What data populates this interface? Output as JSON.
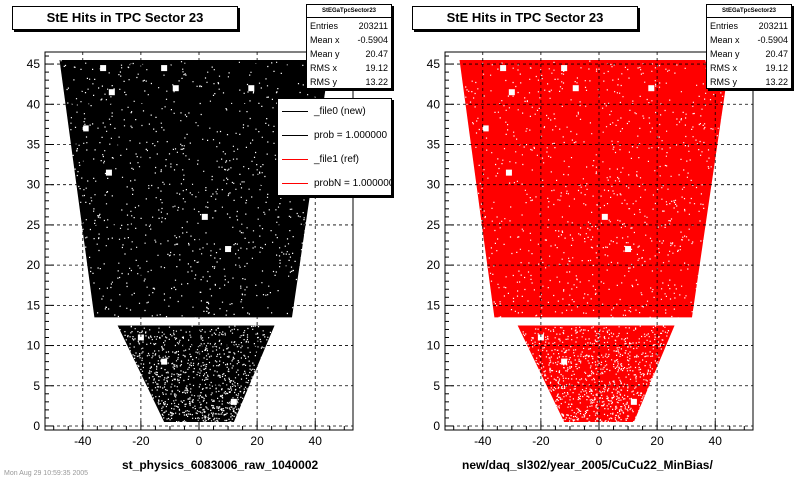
{
  "chart_data": [
    {
      "type": "scatter",
      "title": "StE Hits in TPC Sector 23",
      "xlabel": "st_physics_6083006_raw_1040002",
      "ylabel": "",
      "xlim": [
        -53,
        53
      ],
      "ylim": [
        -0.5,
        46.5
      ],
      "xticks": [
        -40,
        -20,
        0,
        20,
        40
      ],
      "yticks": [
        0,
        5,
        10,
        15,
        20,
        25,
        30,
        35,
        40,
        45
      ],
      "grid": true,
      "color": "#000000",
      "region": {
        "outer_top": {
          "y": [
            13.5,
            45.5
          ],
          "x_min_at_bottom": -36,
          "x_min_at_top": -48,
          "x_max_at_bottom": 32,
          "x_max_at_top": 45
        },
        "inner_bottom": {
          "y": [
            0.5,
            12.5
          ],
          "x_min_at_bottom": -12,
          "x_min_at_top": -28,
          "x_max_at_bottom": 12,
          "x_max_at_top": 26
        }
      },
      "stats": {
        "name": "StEGaTpcSector23",
        "rows": [
          {
            "label": "Entries",
            "value": "203211"
          },
          {
            "label": "Mean x",
            "value": "-0.5904"
          },
          {
            "label": "Mean y",
            "value": "20.47"
          },
          {
            "label": "RMS x",
            "value": "19.12"
          },
          {
            "label": "RMS y",
            "value": "13.22"
          }
        ]
      },
      "legend": {
        "placement": "top-right",
        "entries": [
          {
            "label": "_file0 (new)",
            "color": "#000000"
          },
          {
            "label": "prob = 1.000000",
            "color": "#000000"
          },
          {
            "label": "_file1 (ref)",
            "color": "#ff0000"
          },
          {
            "label": "probN = 1.000000",
            "color": "#ff0000"
          }
        ]
      }
    },
    {
      "type": "scatter",
      "title": "StE Hits in TPC Sector 23",
      "xlabel": "new/daq_sl302/year_2005/CuCu22_MinBias/",
      "ylabel": "",
      "xlim": [
        -53,
        53
      ],
      "ylim": [
        -0.5,
        46.5
      ],
      "xticks": [
        -40,
        -20,
        0,
        20,
        40
      ],
      "yticks": [
        0,
        5,
        10,
        15,
        20,
        25,
        30,
        35,
        40,
        45
      ],
      "grid": true,
      "color": "#ff0000",
      "region": {
        "outer_top": {
          "y": [
            13.5,
            45.5
          ],
          "x_min_at_bottom": -36,
          "x_min_at_top": -48,
          "x_max_at_bottom": 32,
          "x_max_at_top": 45
        },
        "inner_bottom": {
          "y": [
            0.5,
            12.5
          ],
          "x_min_at_bottom": -12,
          "x_min_at_top": -28,
          "x_max_at_bottom": 12,
          "x_max_at_top": 26
        }
      },
      "stats": {
        "name": "StEGaTpcSector23",
        "rows": [
          {
            "label": "Entries",
            "value": "203211"
          },
          {
            "label": "Mean x",
            "value": "-0.5904"
          },
          {
            "label": "Mean y",
            "value": "20.47"
          },
          {
            "label": "RMS x",
            "value": "19.12"
          },
          {
            "label": "RMS y",
            "value": "13.22"
          }
        ]
      }
    }
  ],
  "footer": "Mon Aug 29 10:59:35 2005"
}
